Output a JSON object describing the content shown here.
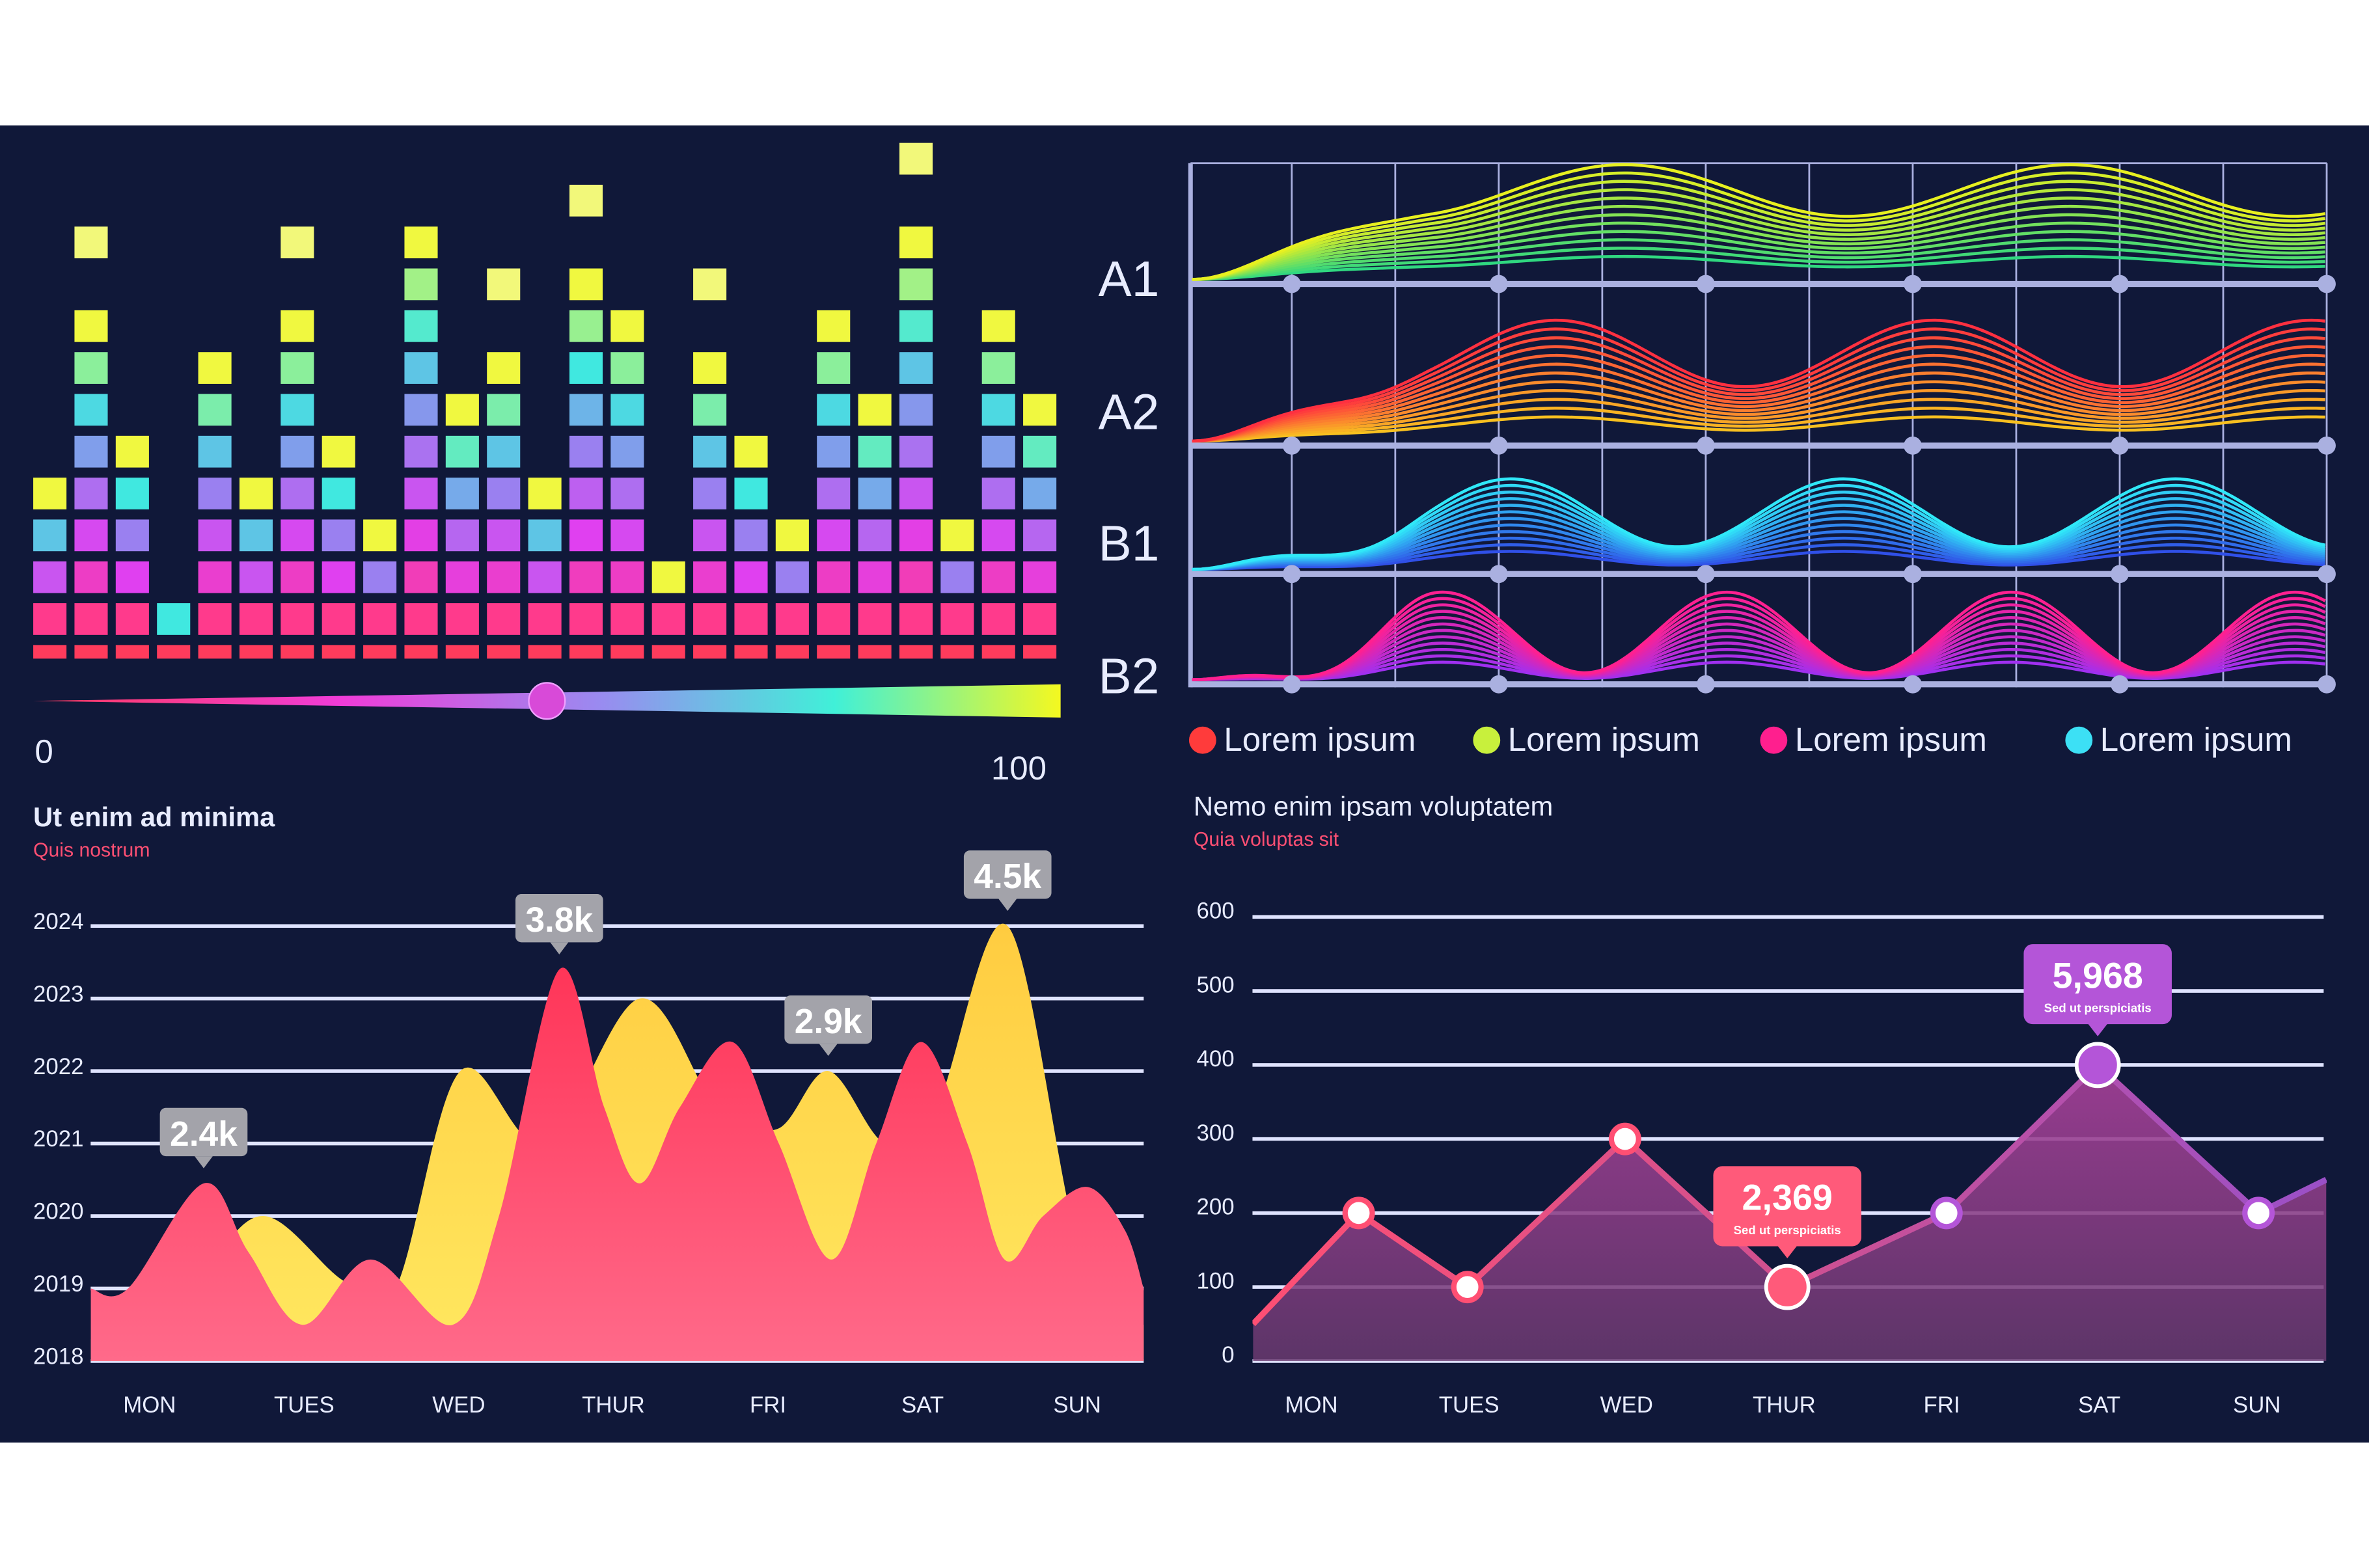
{
  "colors": {
    "background": "#101839",
    "page": "#ffffff",
    "pink": "#ff4f73",
    "yellow": "#ffd94a",
    "purple": "#b455d8",
    "callout_gray": "#a3a3aa"
  },
  "equalizer": {
    "levels": [
      4,
      8,
      5,
      1,
      7,
      4,
      8,
      5,
      3,
      10,
      6,
      7,
      4,
      9,
      8,
      2,
      7,
      5,
      3,
      8,
      6,
      10,
      3,
      8,
      6
    ],
    "peaks": [
      null,
      10,
      null,
      null,
      null,
      null,
      10,
      null,
      null,
      null,
      null,
      9,
      null,
      11,
      null,
      null,
      9,
      null,
      null,
      null,
      null,
      12,
      null,
      null,
      null
    ],
    "slider": {
      "min_label": "0",
      "max_label": "100",
      "value": 50
    }
  },
  "waves": {
    "bands": [
      {
        "label": "A1"
      },
      {
        "label": "A2"
      },
      {
        "label": "B1"
      },
      {
        "label": "B2"
      }
    ],
    "legend": [
      {
        "label": "Lorem ipsum",
        "color": "#ff3b3b"
      },
      {
        "label": "Lorem ipsum",
        "color": "#c8f03c"
      },
      {
        "label": "Lorem ipsum",
        "color": "#ff1f8e"
      },
      {
        "label": "Lorem ipsum",
        "color": "#3ce0f5"
      }
    ]
  },
  "chart_data": [
    {
      "type": "area",
      "title": "Ut enim ad minima",
      "subtitle": "Quis nostrum",
      "categories": [
        "MON",
        "TUES",
        "WED",
        "THUR",
        "FRI",
        "SAT",
        "SUN"
      ],
      "y_ticks": [
        "2018",
        "2019",
        "2020",
        "2021",
        "2022",
        "2023",
        "2024"
      ],
      "ylim": [
        2018,
        2024
      ],
      "xlim": [
        -0.38,
        6.43
      ],
      "series": [
        {
          "name": "yellow",
          "color": "#ffd94a",
          "x": [
            -0.38,
            0.3,
            0.74,
            1.26,
            1.59,
            2.01,
            2.55,
            3.17,
            3.67,
            4.06,
            4.39,
            4.76,
            5.09,
            5.55,
            6.02,
            6.43
          ],
          "y": [
            2018.3,
            2019.2,
            2020.0,
            2019.1,
            2019.0,
            2022.0,
            2021.0,
            2023.0,
            2021.5,
            2021.2,
            2022.0,
            2021.0,
            2021.5,
            2024.0,
            2019.5,
            2018.5
          ]
        },
        {
          "name": "pink",
          "color": "#ff4f73",
          "x": [
            -0.38,
            -0.14,
            0.35,
            0.64,
            0.99,
            1.43,
            1.96,
            2.26,
            2.65,
            2.94,
            3.17,
            3.43,
            3.77,
            4.07,
            4.41,
            4.7,
            4.99,
            5.29,
            5.53,
            5.78,
            6.07,
            6.31,
            6.43
          ],
          "y": [
            2019.0,
            2019.0,
            2020.45,
            2019.5,
            2018.5,
            2019.4,
            2018.5,
            2020.0,
            2023.4,
            2021.5,
            2020.45,
            2021.5,
            2022.4,
            2021.0,
            2019.4,
            2021.0,
            2022.4,
            2021.0,
            2019.4,
            2020.0,
            2020.4,
            2019.8,
            2019.0
          ]
        }
      ],
      "annotations": [
        {
          "text": "2.4k",
          "x": 0.35,
          "y": 2020.45
        },
        {
          "text": "3.8k",
          "x": 2.65,
          "y": 2023.4
        },
        {
          "text": "2.9k",
          "x": 4.39,
          "y": 2022.0
        },
        {
          "text": "4.5k",
          "x": 5.55,
          "y": 2024.0
        }
      ]
    },
    {
      "type": "line",
      "title": "Nemo enim ipsam voluptatem",
      "subtitle": "Quia voluptas sit",
      "categories": [
        "MON",
        "TUES",
        "WED",
        "THUR",
        "FRI",
        "SAT",
        "SUN"
      ],
      "y_ticks": [
        "0",
        "100",
        "200",
        "300",
        "400",
        "500",
        "600"
      ],
      "ylim": [
        0,
        600
      ],
      "xlim": [
        -0.37,
        6.44
      ],
      "series": [
        {
          "name": "values",
          "x": [
            -0.37,
            0.3,
            0.99,
            1.99,
            3.02,
            4.03,
            4.99,
            6.01,
            6.44
          ],
          "y": [
            50,
            200,
            100,
            300,
            100,
            200,
            400,
            200,
            245
          ]
        }
      ],
      "annotations": [
        {
          "value": "2,369",
          "sub": "Sed ut perspiciatis",
          "x": 3.02,
          "y": 100,
          "color": "#ff5a7a"
        },
        {
          "value": "5,968",
          "sub": "Sed ut perspiciatis",
          "x": 4.99,
          "y": 400,
          "color": "#b455d8"
        }
      ]
    }
  ]
}
